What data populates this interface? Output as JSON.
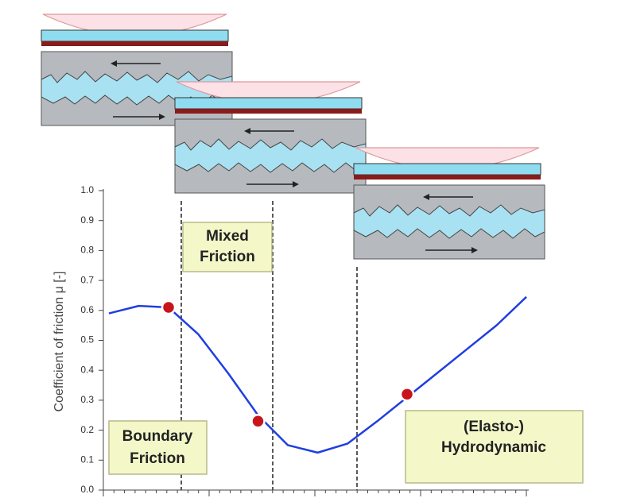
{
  "chart_data": {
    "type": "line",
    "ylabel": "Coefficient of friction μ [-]",
    "annotations": [
      "Mixed",
      "Friction",
      "Boundary",
      "Friction",
      "(Elasto-)",
      "Hydrodynamic"
    ],
    "categories": [
      null,
      null,
      null,
      null,
      null,
      null,
      null,
      null,
      null,
      null,
      null,
      null,
      null,
      null,
      null
    ],
    "series": [
      {
        "color": "#1f3fe0",
        "values": [
          0.59,
          0.615,
          0.61,
          0.52,
          0.39,
          0.25,
          0.15,
          0.125,
          0.155,
          0.23,
          0.31,
          0.39,
          0.47,
          0.55,
          0.645
        ]
      },
      {
        "color": "#c8151b",
        "values": [
          null,
          null,
          0.61,
          null,
          null,
          0.23,
          null,
          null,
          null,
          null,
          0.32,
          null,
          null,
          null,
          null
        ]
      }
    ],
    "ylim": [
      0,
      1
    ],
    "yticks": [
      {
        "value": 0,
        "label": "0.0"
      },
      0.1,
      0.2,
      0.3,
      0.4,
      0.5,
      0.6,
      0.7,
      0.8,
      0.9,
      {
        "value": 1,
        "label": "1.0"
      }
    ]
  }
}
